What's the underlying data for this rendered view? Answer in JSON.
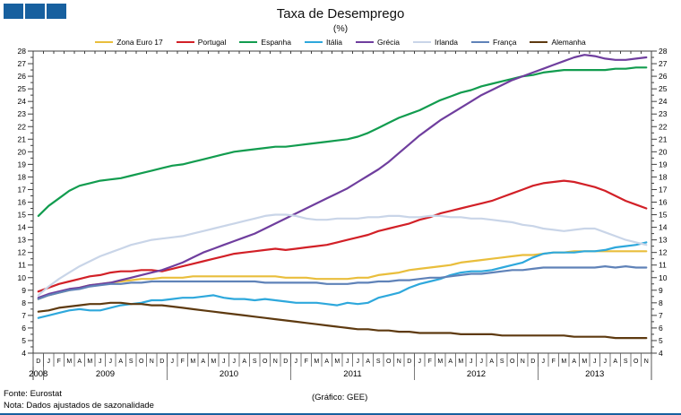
{
  "page": {
    "footer_source": "Fonte: Eurostat",
    "footer_note": "Nota: Dados ajustados de sazonalidade",
    "footer_credit": "(Gráfico: GEE)",
    "accent_color": "#17609F"
  },
  "chart_data": {
    "type": "line",
    "title": "Taxa de Desemprego",
    "subtitle": "(%)",
    "ylim": [
      4,
      28
    ],
    "y_major_step": 1,
    "y_minor_step": 0.5,
    "grid": false,
    "legend_position": "top",
    "x_month_labels": [
      "D",
      "J",
      "F",
      "M",
      "A",
      "M",
      "J",
      "J",
      "A",
      "S",
      "O",
      "N",
      "D",
      "J",
      "F",
      "M",
      "A",
      "M",
      "J",
      "J",
      "A",
      "S",
      "O",
      "N",
      "D",
      "J",
      "F",
      "M",
      "A",
      "M",
      "J",
      "J",
      "A",
      "S",
      "O",
      "N",
      "D",
      "J",
      "F",
      "M",
      "A",
      "M",
      "J",
      "J",
      "A",
      "S",
      "O",
      "N",
      "D",
      "J",
      "F",
      "M",
      "A",
      "M",
      "J",
      "J",
      "A",
      "S",
      "O",
      "N"
    ],
    "year_groups": [
      {
        "label": "2008",
        "count": 1
      },
      {
        "label": "2009",
        "count": 12
      },
      {
        "label": "2010",
        "count": 12
      },
      {
        "label": "2011",
        "count": 12
      },
      {
        "label": "2012",
        "count": 12
      },
      {
        "label": "2013",
        "count": 11
      }
    ],
    "series": [
      {
        "name": "Zona Euro 17",
        "color": "#E9BE3C",
        "values": [
          8.3,
          8.6,
          8.8,
          9.0,
          9.2,
          9.4,
          9.5,
          9.6,
          9.7,
          9.8,
          9.9,
          9.9,
          10.0,
          10.0,
          10.0,
          10.1,
          10.1,
          10.1,
          10.1,
          10.1,
          10.1,
          10.1,
          10.1,
          10.1,
          10.0,
          10.0,
          10.0,
          9.9,
          9.9,
          9.9,
          9.9,
          10.0,
          10.0,
          10.2,
          10.3,
          10.4,
          10.6,
          10.7,
          10.8,
          10.9,
          11.0,
          11.2,
          11.3,
          11.4,
          11.5,
          11.6,
          11.7,
          11.8,
          11.8,
          11.9,
          12.0,
          12.0,
          12.1,
          12.1,
          12.1,
          12.1,
          12.1,
          12.1,
          12.1,
          12.1
        ]
      },
      {
        "name": "Portugal",
        "color": "#D22027",
        "values": [
          8.9,
          9.2,
          9.5,
          9.7,
          9.9,
          10.1,
          10.2,
          10.4,
          10.5,
          10.5,
          10.6,
          10.6,
          10.5,
          10.7,
          10.9,
          11.1,
          11.3,
          11.5,
          11.7,
          11.9,
          12.0,
          12.1,
          12.2,
          12.3,
          12.2,
          12.3,
          12.4,
          12.5,
          12.6,
          12.8,
          13.0,
          13.2,
          13.4,
          13.7,
          13.9,
          14.1,
          14.3,
          14.6,
          14.8,
          15.1,
          15.3,
          15.5,
          15.7,
          15.9,
          16.1,
          16.4,
          16.7,
          17.0,
          17.3,
          17.5,
          17.6,
          17.7,
          17.6,
          17.4,
          17.2,
          16.9,
          16.5,
          16.1,
          15.8,
          15.5
        ]
      },
      {
        "name": "Espanha",
        "color": "#129C4F",
        "values": [
          14.9,
          15.7,
          16.3,
          16.9,
          17.3,
          17.5,
          17.7,
          17.8,
          17.9,
          18.1,
          18.3,
          18.5,
          18.7,
          18.9,
          19.0,
          19.2,
          19.4,
          19.6,
          19.8,
          20.0,
          20.1,
          20.2,
          20.3,
          20.4,
          20.4,
          20.5,
          20.6,
          20.7,
          20.8,
          20.9,
          21.0,
          21.2,
          21.5,
          21.9,
          22.3,
          22.7,
          23.0,
          23.3,
          23.7,
          24.1,
          24.4,
          24.7,
          24.9,
          25.2,
          25.4,
          25.6,
          25.8,
          26.0,
          26.1,
          26.3,
          26.4,
          26.5,
          26.5,
          26.5,
          26.5,
          26.5,
          26.6,
          26.6,
          26.7,
          26.7
        ]
      },
      {
        "name": "Itália",
        "color": "#2EA8DC",
        "values": [
          6.8,
          7.0,
          7.2,
          7.4,
          7.5,
          7.4,
          7.4,
          7.6,
          7.8,
          7.9,
          8.0,
          8.2,
          8.2,
          8.3,
          8.4,
          8.4,
          8.5,
          8.6,
          8.4,
          8.3,
          8.3,
          8.2,
          8.3,
          8.2,
          8.1,
          8.0,
          8.0,
          8.0,
          7.9,
          7.8,
          8.0,
          7.9,
          8.0,
          8.4,
          8.6,
          8.8,
          9.2,
          9.5,
          9.7,
          9.9,
          10.2,
          10.4,
          10.5,
          10.5,
          10.6,
          10.8,
          11.0,
          11.2,
          11.6,
          11.9,
          12.0,
          12.0,
          12.0,
          12.1,
          12.1,
          12.2,
          12.4,
          12.5,
          12.6,
          12.8
        ]
      },
      {
        "name": "Grécia",
        "color": "#6F3E9E",
        "values": [
          8.4,
          8.7,
          8.9,
          9.1,
          9.2,
          9.4,
          9.5,
          9.6,
          9.8,
          10.0,
          10.2,
          10.4,
          10.6,
          10.9,
          11.2,
          11.6,
          12.0,
          12.3,
          12.6,
          12.9,
          13.2,
          13.5,
          13.9,
          14.3,
          14.7,
          15.1,
          15.5,
          15.9,
          16.3,
          16.7,
          17.1,
          17.6,
          18.1,
          18.6,
          19.2,
          19.9,
          20.6,
          21.3,
          21.9,
          22.5,
          23.0,
          23.5,
          24.0,
          24.5,
          24.9,
          25.3,
          25.7,
          26.0,
          26.3,
          26.6,
          26.9,
          27.2,
          27.5,
          27.7,
          27.6,
          27.4,
          27.3,
          27.3,
          27.4,
          27.5
        ]
      },
      {
        "name": "Irlanda",
        "color": "#C9D5E8",
        "values": [
          8.6,
          9.3,
          9.9,
          10.4,
          10.9,
          11.3,
          11.7,
          12.0,
          12.3,
          12.6,
          12.8,
          13.0,
          13.1,
          13.2,
          13.3,
          13.5,
          13.7,
          13.9,
          14.1,
          14.3,
          14.5,
          14.7,
          14.9,
          15.0,
          15.0,
          14.9,
          14.7,
          14.6,
          14.6,
          14.7,
          14.7,
          14.7,
          14.8,
          14.8,
          14.9,
          14.9,
          14.8,
          14.8,
          14.9,
          14.9,
          14.8,
          14.8,
          14.7,
          14.7,
          14.6,
          14.5,
          14.4,
          14.2,
          14.1,
          13.9,
          13.8,
          13.7,
          13.8,
          13.9,
          13.9,
          13.6,
          13.3,
          13.0,
          12.8,
          12.6
        ]
      },
      {
        "name": "França",
        "color": "#5F82B8",
        "values": [
          8.3,
          8.6,
          8.8,
          9.0,
          9.1,
          9.3,
          9.4,
          9.5,
          9.5,
          9.6,
          9.6,
          9.7,
          9.7,
          9.7,
          9.7,
          9.7,
          9.7,
          9.7,
          9.7,
          9.7,
          9.7,
          9.7,
          9.6,
          9.6,
          9.6,
          9.6,
          9.6,
          9.6,
          9.5,
          9.5,
          9.5,
          9.6,
          9.6,
          9.7,
          9.7,
          9.8,
          9.8,
          9.9,
          10.0,
          10.0,
          10.1,
          10.2,
          10.3,
          10.3,
          10.4,
          10.5,
          10.6,
          10.6,
          10.7,
          10.8,
          10.8,
          10.8,
          10.8,
          10.8,
          10.8,
          10.9,
          10.8,
          10.9,
          10.8,
          10.8
        ]
      },
      {
        "name": "Alemanha",
        "color": "#5E3A10",
        "values": [
          7.3,
          7.4,
          7.6,
          7.7,
          7.8,
          7.9,
          7.9,
          8.0,
          8.0,
          7.9,
          7.9,
          7.8,
          7.8,
          7.7,
          7.6,
          7.5,
          7.4,
          7.3,
          7.2,
          7.1,
          7.0,
          6.9,
          6.8,
          6.7,
          6.6,
          6.5,
          6.4,
          6.3,
          6.2,
          6.1,
          6.0,
          5.9,
          5.9,
          5.8,
          5.8,
          5.7,
          5.7,
          5.6,
          5.6,
          5.6,
          5.6,
          5.5,
          5.5,
          5.5,
          5.5,
          5.4,
          5.4,
          5.4,
          5.4,
          5.4,
          5.4,
          5.4,
          5.3,
          5.3,
          5.3,
          5.3,
          5.2,
          5.2,
          5.2,
          5.2
        ]
      }
    ]
  }
}
